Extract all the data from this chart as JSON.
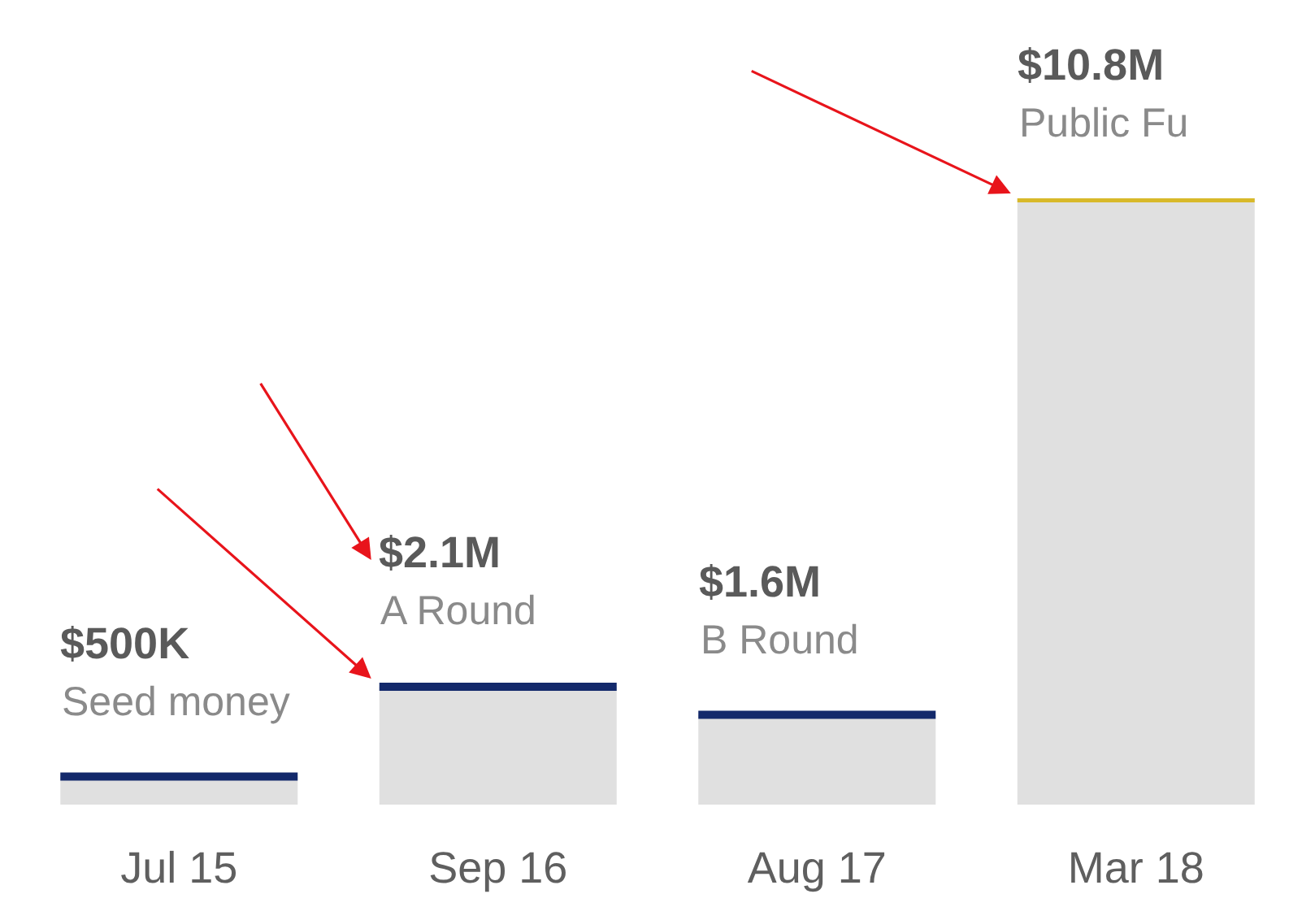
{
  "chart_data": {
    "type": "bar",
    "categories": [
      "Jul 15",
      "Sep 16",
      "Aug 17",
      "Mar 18"
    ],
    "values": [
      500000,
      2100000,
      1600000,
      10800000
    ],
    "ylim": [
      0,
      10800000
    ],
    "tick_labels": "x",
    "colors": [
      "#e0e0e0",
      "#e0e0e0",
      "#e0e0e0",
      "#e0e0e0"
    ],
    "value_labels": [
      "$500K",
      "$2.1M",
      "$1.6M",
      "$10.8M"
    ],
    "annotations": [
      {
        "text": "Seed money",
        "x": "Jul 15",
        "y": 500000
      },
      {
        "text": "A Round",
        "x": "Sep 16",
        "y": 2100000
      },
      {
        "text": "B Round",
        "x": "Aug 17",
        "y": 1600000
      },
      {
        "text": "Public Fu",
        "x": "Mar 18",
        "y": 10800000
      }
    ]
  }
}
